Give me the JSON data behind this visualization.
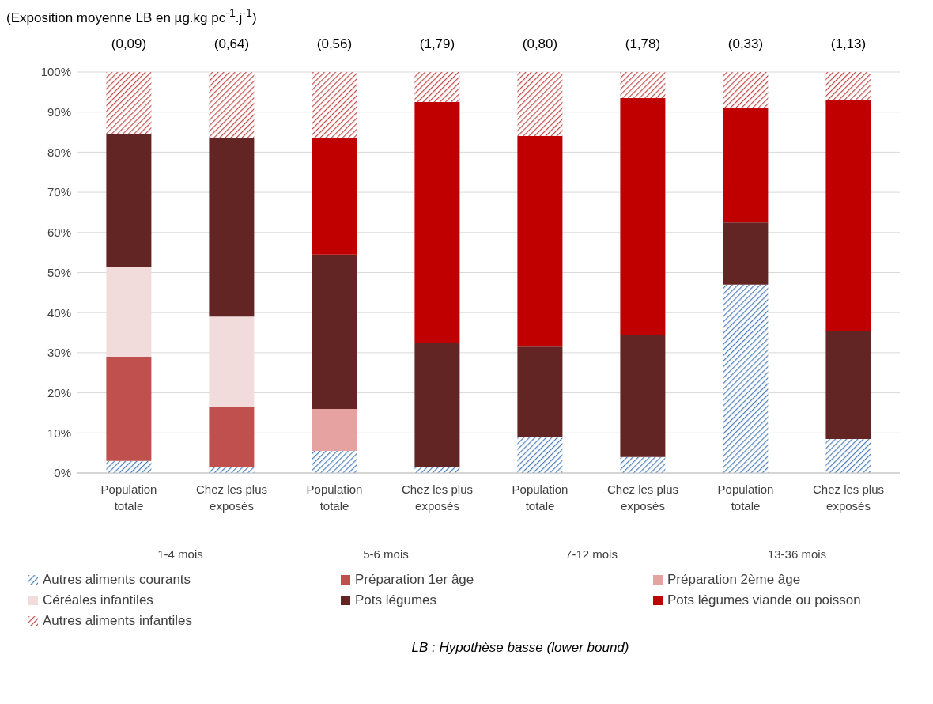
{
  "chart_data": {
    "type": "bar",
    "stacked": true,
    "title": "(Exposition moyenne LB en µg.kg pc$^{-1}$.j$^{-1}$)",
    "categories": [
      "Population totale",
      "Chez les plus exposés",
      "Population totale",
      "Chez les plus exposés",
      "Population totale",
      "Chez les plus exposés",
      "Population totale",
      "Chez les plus exposés"
    ],
    "series": [
      {
        "name": "Autres aliments courants",
        "color": "#4f81bd",
        "values": [
          3,
          1.5,
          5.5,
          1.5,
          9,
          4,
          47,
          8.5
        ]
      },
      {
        "name": "Préparation 1er âge",
        "color": "#c0504d",
        "values": [
          26,
          15,
          0,
          0,
          0,
          0,
          0,
          0
        ]
      },
      {
        "name": "Préparation 2ème âge",
        "color": "#e6a1a1",
        "values": [
          0,
          0,
          10.5,
          0,
          0,
          0,
          0,
          0
        ]
      },
      {
        "name": "Céréales infantiles",
        "color": "#f2dcdb",
        "values": [
          22.5,
          22.5,
          0,
          0,
          0,
          0,
          0,
          0
        ]
      },
      {
        "name": "Pots légumes",
        "color": "#632523",
        "values": [
          33,
          44.5,
          38.5,
          31,
          22.5,
          30.5,
          15.5,
          27
        ]
      },
      {
        "name": "Pots légumes viande ou poisson",
        "color": "#c00000",
        "values": [
          0,
          0,
          29,
          60,
          52.5,
          59,
          28.5,
          57.5
        ]
      },
      {
        "name": "Autres aliments infantiles",
        "color": "#c0504d",
        "values": [
          15.5,
          16.5,
          16.5,
          7.5,
          16,
          6.5,
          9,
          7
        ]
      }
    ],
    "ylim": [
      0,
      100
    ],
    "yticks": [
      {
        "value": 0,
        "label": "0%"
      },
      {
        "value": 10,
        "label": "10%"
      },
      {
        "value": 20,
        "label": "20%"
      },
      {
        "value": 30,
        "label": "30%"
      },
      {
        "value": 40,
        "label": "40%"
      },
      {
        "value": 50,
        "label": "50%"
      },
      {
        "value": 60,
        "label": "60%"
      },
      {
        "value": 70,
        "label": "70%"
      },
      {
        "value": 80,
        "label": "80%"
      },
      {
        "value": 90,
        "label": "90%"
      },
      {
        "value": 100,
        "label": "100%"
      }
    ],
    "grid": "y",
    "legend": "bottom",
    "annotations": [
      "(0,09)",
      "(0,64)",
      "(0,56)",
      "(1,79)",
      "(0,80)",
      "(1,78)",
      "(0,33)",
      "(1,13)",
      "1-4 mois",
      "5-6 mois",
      "7-12 mois",
      "13-36 mois",
      "LB : Hypothèse basse (lower bound)"
    ]
  }
}
